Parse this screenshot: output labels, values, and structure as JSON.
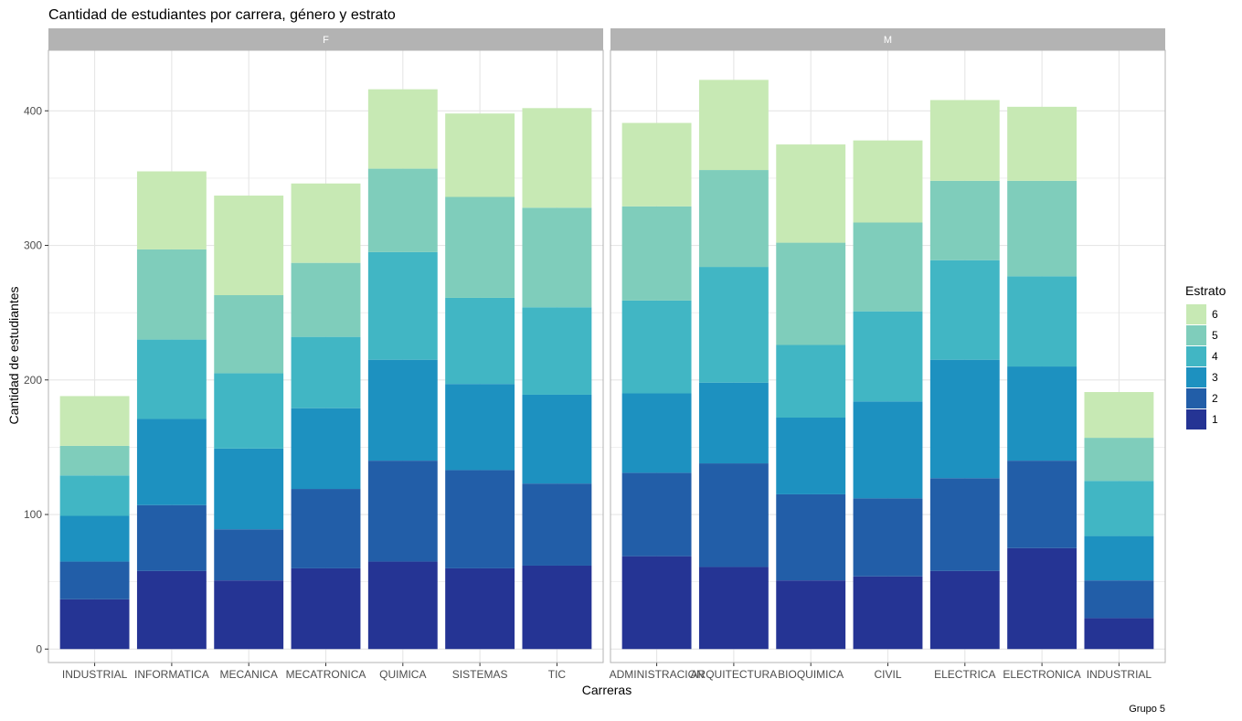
{
  "chart_data": {
    "type": "bar",
    "stacked": true,
    "title": "Cantidad de estudiantes por carrera, género y estrato",
    "xlabel": "Carreras",
    "ylabel": "Cantidad de estudiantes",
    "caption": "Grupo 5",
    "ylim": [
      -10,
      445
    ],
    "yticks": [
      0,
      100,
      200,
      300,
      400
    ],
    "grid": true,
    "legend": {
      "title": "Estrato",
      "position": "right",
      "entries": [
        "6",
        "5",
        "4",
        "3",
        "2",
        "1"
      ]
    },
    "strata": [
      "1",
      "2",
      "3",
      "4",
      "5",
      "6"
    ],
    "colors": {
      "1": "#253494",
      "2": "#225ea8",
      "3": "#1d91c0",
      "4": "#41b6c4",
      "5": "#7fcdbb",
      "6": "#c7e9b4",
      "strip": "#b3b3b3",
      "grid": "#e6e6e6",
      "panel_border": "#b3b3b3"
    },
    "facets": [
      {
        "name": "F",
        "categories": [
          "INDUSTRIAL",
          "INFORMATICA",
          "MECANICA",
          "MECATRONICA",
          "QUIMICA",
          "SISTEMAS",
          "TIC"
        ],
        "series": [
          {
            "name": "1",
            "values": [
              37,
              58,
              51,
              60,
              65,
              60,
              62
            ]
          },
          {
            "name": "2",
            "values": [
              28,
              49,
              38,
              59,
              75,
              73,
              61
            ]
          },
          {
            "name": "3",
            "values": [
              34,
              64,
              60,
              60,
              75,
              64,
              66
            ]
          },
          {
            "name": "4",
            "values": [
              30,
              59,
              56,
              53,
              80,
              64,
              65
            ]
          },
          {
            "name": "5",
            "values": [
              22,
              67,
              58,
              55,
              62,
              75,
              74
            ]
          },
          {
            "name": "6",
            "values": [
              37,
              58,
              74,
              59,
              59,
              62,
              74
            ]
          }
        ]
      },
      {
        "name": "M",
        "categories": [
          "ADMINISTRACION",
          "ARQUITECTURA",
          "BIOQUIMICA",
          "CIVIL",
          "ELECTRICA",
          "ELECTRONICA",
          "INDUSTRIAL"
        ],
        "series": [
          {
            "name": "1",
            "values": [
              69,
              61,
              51,
              54,
              58,
              75,
              23
            ]
          },
          {
            "name": "2",
            "values": [
              62,
              77,
              64,
              58,
              69,
              65,
              28
            ]
          },
          {
            "name": "3",
            "values": [
              59,
              60,
              57,
              72,
              88,
              70,
              33
            ]
          },
          {
            "name": "4",
            "values": [
              69,
              86,
              54,
              67,
              74,
              67,
              41
            ]
          },
          {
            "name": "5",
            "values": [
              70,
              72,
              76,
              66,
              59,
              71,
              32
            ]
          },
          {
            "name": "6",
            "values": [
              62,
              67,
              73,
              61,
              60,
              55,
              34
            ]
          }
        ]
      }
    ]
  }
}
